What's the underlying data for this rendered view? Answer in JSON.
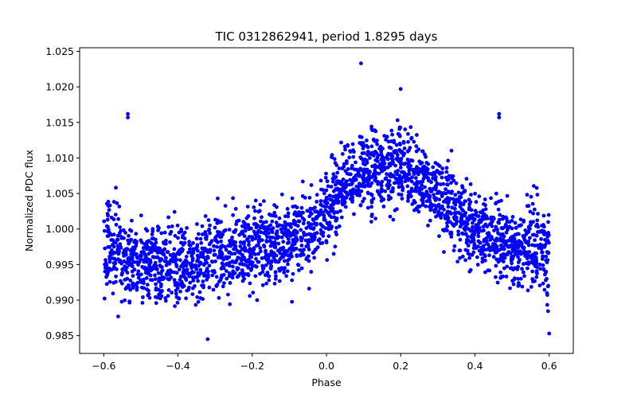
{
  "chart_data": {
    "type": "scatter",
    "title": "TIC 0312862941, period 1.8295 days",
    "xlabel": "Phase",
    "ylabel": "Normalized PDC flux",
    "xlim": [
      -0.665,
      0.665
    ],
    "ylim": [
      0.9825,
      1.0255
    ],
    "xticks": [
      -0.6,
      -0.4,
      -0.2,
      0.0,
      0.2,
      0.4,
      0.6
    ],
    "xtick_labels": [
      "−0.6",
      "−0.4",
      "−0.2",
      "0.0",
      "0.2",
      "0.4",
      "0.6"
    ],
    "yticks": [
      0.985,
      0.99,
      0.995,
      1.0,
      1.005,
      1.01,
      1.015,
      1.02,
      1.025
    ],
    "ytick_labels": [
      "0.985",
      "0.990",
      "0.995",
      "1.000",
      "1.005",
      "1.010",
      "1.015",
      "1.020",
      "1.025"
    ],
    "grid": false,
    "marker_color": "#0000ff",
    "series": [
      {
        "x": [
          -0.6,
          -0.56,
          -0.52,
          -0.48,
          -0.44,
          -0.4,
          -0.36,
          -0.32,
          -0.28,
          -0.24,
          -0.2,
          -0.16,
          -0.12,
          -0.08,
          -0.04,
          0.0,
          0.04,
          0.08,
          0.12,
          0.16,
          0.2,
          0.24,
          0.28,
          0.32,
          0.36,
          0.4,
          0.44,
          0.48,
          0.52,
          0.56,
          0.6
        ],
        "y": [
          0.9975,
          0.9965,
          0.9955,
          0.9955,
          0.995,
          0.995,
          0.9955,
          0.996,
          0.9965,
          0.997,
          0.9975,
          0.998,
          0.998,
          0.9985,
          0.9995,
          1.003,
          1.0055,
          1.007,
          1.008,
          1.0085,
          1.0085,
          1.008,
          1.006,
          1.004,
          1.002,
          1.0,
          0.999,
          0.998,
          0.9975,
          0.9972,
          0.997
        ],
        "y_spread": 0.0035,
        "outliers": [
          {
            "x": -0.535,
            "y": 1.0162
          },
          {
            "x": -0.535,
            "y": 1.0157
          },
          {
            "x": 0.093,
            "y": 1.0233
          },
          {
            "x": 0.2,
            "y": 1.0197
          },
          {
            "x": 0.465,
            "y": 1.0162
          },
          {
            "x": 0.465,
            "y": 1.0157
          },
          {
            "x": -0.32,
            "y": 0.9845
          },
          {
            "x": 0.6,
            "y": 0.9853
          }
        ]
      }
    ]
  }
}
